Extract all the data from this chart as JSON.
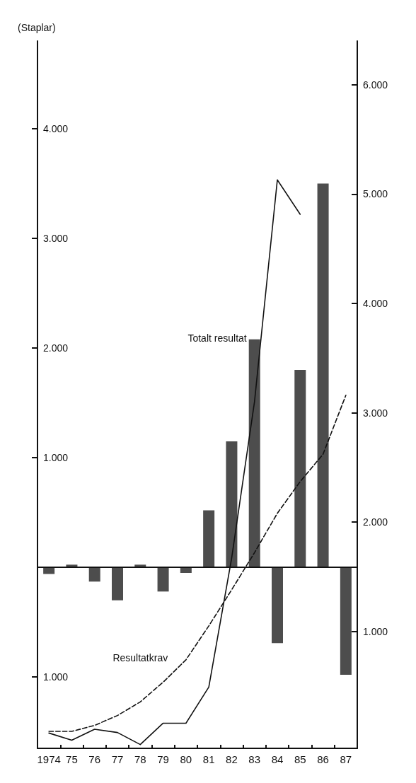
{
  "chart_data": {
    "type": "bar",
    "ylabel": "(Staplar)",
    "categories": [
      "1974",
      "75",
      "76",
      "77",
      "78",
      "79",
      "80",
      "81",
      "82",
      "83",
      "84",
      "85",
      "86",
      "87"
    ],
    "series": [
      {
        "color": "#4d4d4d",
        "values": [
          -60,
          25,
          -130,
          -300,
          25,
          -220,
          -50,
          520,
          1150,
          2080,
          -690,
          1800,
          3500,
          -980
        ]
      },
      {
        "type": "line",
        "name": "Totalt resultat",
        "axis": "y2",
        "color": "#111111",
        "line_style": "solid",
        "values": [
          70,
          5,
          105,
          75,
          -35,
          160,
          160,
          490,
          1670,
          3100,
          5130,
          4815,
          null,
          null
        ]
      },
      {
        "type": "line",
        "name": "Resultatkrav",
        "axis": "y2",
        "color": "#111111",
        "line_style": "dashed",
        "values": [
          85,
          85,
          140,
          230,
          355,
          535,
          740,
          1050,
          1380,
          1720,
          2080,
          2370,
          2620,
          3160
        ]
      }
    ],
    "ylim": [
      -1650,
      4800
    ],
    "yticks": [
      {
        "value": 4000,
        "label": "4.000"
      },
      {
        "value": 3000,
        "label": "3.000"
      },
      {
        "value": 2000,
        "label": "2.000"
      },
      {
        "value": 1000,
        "label": "1.000"
      },
      {
        "value": -1000,
        "label": "1.000"
      }
    ],
    "y2lim": [
      -70,
      6400
    ],
    "y2ticks": [
      {
        "value": 1000,
        "label": "1.000"
      },
      {
        "value": 2000,
        "label": "2.000"
      },
      {
        "value": 3000,
        "label": "3.000"
      },
      {
        "value": 4000,
        "label": "4.000"
      },
      {
        "value": 5000,
        "label": "5.000"
      },
      {
        "value": 6000,
        "label": "6.000"
      }
    ],
    "ref_lines": [
      {
        "axis": "y",
        "value": 0,
        "label": null
      }
    ],
    "grid": false,
    "legend": false,
    "marker": "none"
  }
}
